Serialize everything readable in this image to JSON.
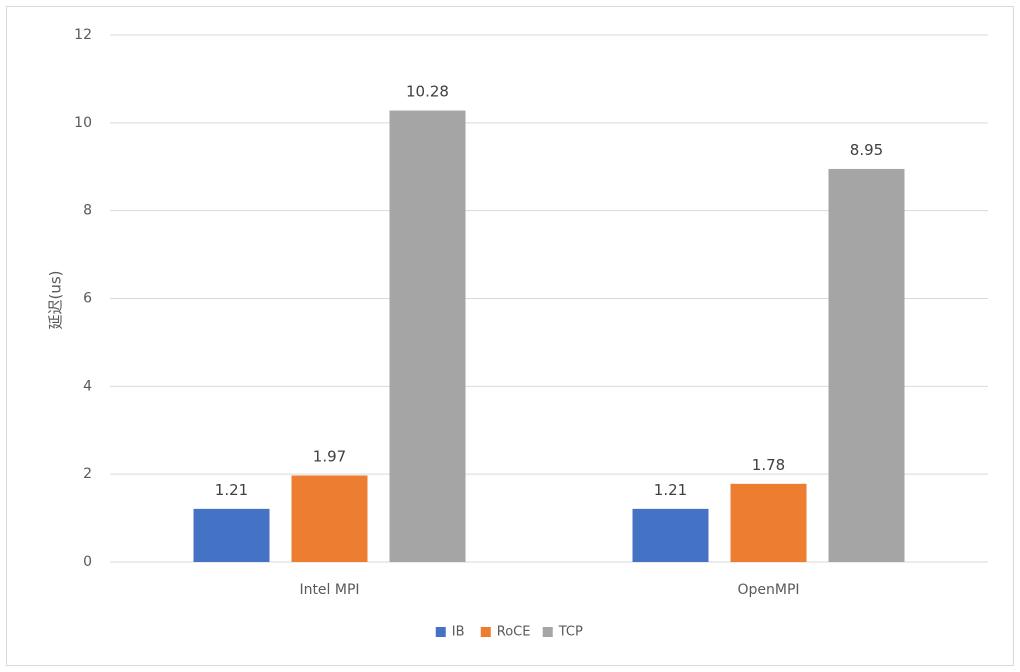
{
  "chart_data": {
    "type": "bar",
    "title": "",
    "ylabel": "延迟(us)",
    "xlabel": "",
    "ylim": [
      0,
      12
    ],
    "yticks": [
      0,
      2,
      4,
      6,
      8,
      10,
      12
    ],
    "categories": [
      "Intel MPI",
      "OpenMPI"
    ],
    "series": [
      {
        "name": "IB",
        "color": "#4472c4",
        "values": [
          1.21,
          1.21
        ]
      },
      {
        "name": "RoCE",
        "color": "#ed7d31",
        "values": [
          1.97,
          1.78
        ]
      },
      {
        "name": "TCP",
        "color": "#a5a5a5",
        "values": [
          10.28,
          8.95
        ]
      }
    ],
    "grid": true,
    "legend_position": "bottom",
    "data_labels": true
  }
}
